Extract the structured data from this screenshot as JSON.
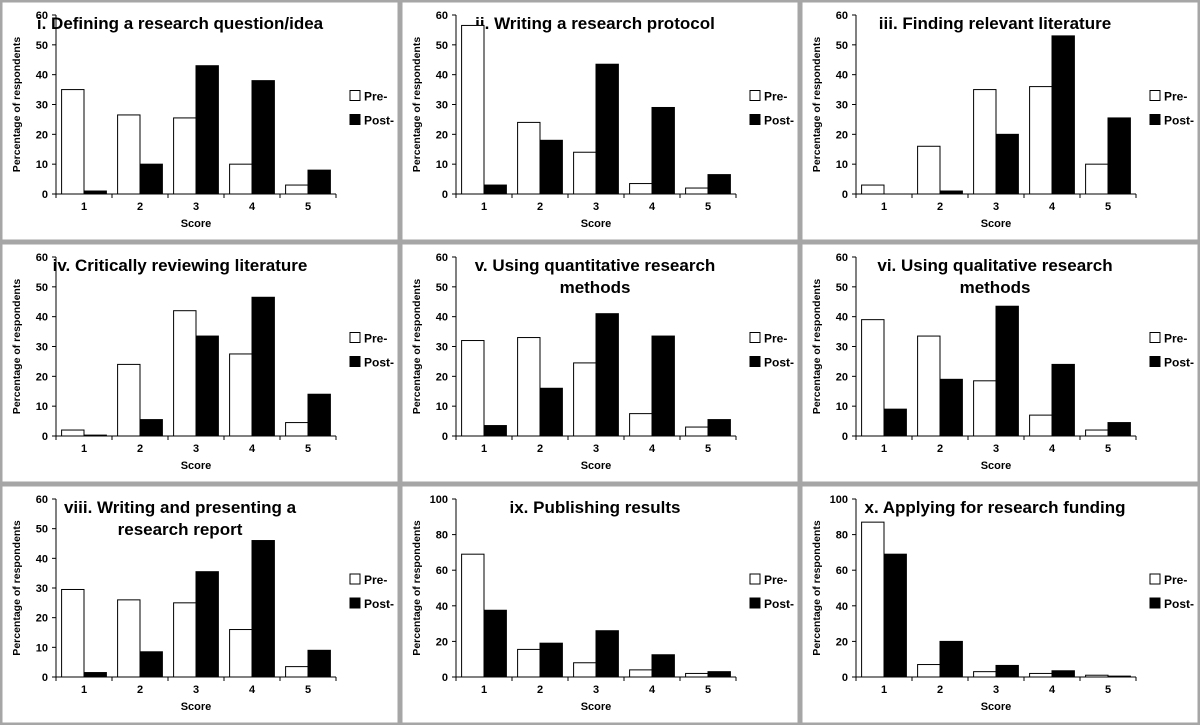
{
  "chart_data": [
    {
      "type": "bar",
      "title": "i. Defining a research question/idea",
      "categories": [
        "1",
        "2",
        "3",
        "4",
        "5"
      ],
      "series": [
        {
          "name": "Pre-",
          "values": [
            35,
            26.5,
            25.5,
            10,
            3
          ]
        },
        {
          "name": "Post-",
          "values": [
            1,
            10,
            43,
            38,
            8
          ]
        }
      ],
      "xlabel": "Score",
      "ylabel": "Percentage of respondents",
      "ylim": [
        0,
        60
      ],
      "yticks": [
        "0",
        "10",
        "20",
        "30",
        "40",
        "50",
        "60"
      ],
      "grid": false,
      "legend": "right"
    },
    {
      "type": "bar",
      "title": "ii. Writing a research protocol",
      "categories": [
        "1",
        "2",
        "3",
        "4",
        "5"
      ],
      "series": [
        {
          "name": "Pre-",
          "values": [
            56.5,
            24,
            14,
            3.5,
            2
          ]
        },
        {
          "name": "Post-",
          "values": [
            3,
            18,
            43.5,
            29,
            6.5
          ]
        }
      ],
      "xlabel": "Score",
      "ylabel": "Percentage of respondents",
      "ylim": [
        0,
        60
      ],
      "yticks": [
        "0",
        "10",
        "20",
        "30",
        "40",
        "50",
        "60"
      ],
      "grid": false,
      "legend": "right"
    },
    {
      "type": "bar",
      "title": "iii. Finding relevant literature",
      "categories": [
        "1",
        "2",
        "3",
        "4",
        "5"
      ],
      "series": [
        {
          "name": "Pre-",
          "values": [
            3,
            16,
            35,
            36,
            10
          ]
        },
        {
          "name": "Post-",
          "values": [
            0,
            1,
            20,
            53,
            25.5
          ]
        }
      ],
      "xlabel": "Score",
      "ylabel": "Percentage of respondents",
      "ylim": [
        0,
        60
      ],
      "yticks": [
        "0",
        "10",
        "20",
        "30",
        "40",
        "50",
        "60"
      ],
      "grid": false,
      "legend": "right"
    },
    {
      "type": "bar",
      "title": "iv. Critically reviewing literature",
      "categories": [
        "1",
        "2",
        "3",
        "4",
        "5"
      ],
      "series": [
        {
          "name": "Pre-",
          "values": [
            2,
            24,
            42,
            27.5,
            4.5
          ]
        },
        {
          "name": "Post-",
          "values": [
            0.3,
            5.5,
            33.5,
            46.5,
            14
          ]
        }
      ],
      "xlabel": "Score",
      "ylabel": "Percentage of respondents",
      "ylim": [
        0,
        60
      ],
      "yticks": [
        "0",
        "10",
        "20",
        "30",
        "40",
        "50",
        "60"
      ],
      "grid": false,
      "legend": "right"
    },
    {
      "type": "bar",
      "title": "v. Using quantitative research methods",
      "categories": [
        "1",
        "2",
        "3",
        "4",
        "5"
      ],
      "series": [
        {
          "name": "Pre-",
          "values": [
            32,
            33,
            24.5,
            7.5,
            3
          ]
        },
        {
          "name": "Post-",
          "values": [
            3.5,
            16,
            41,
            33.5,
            5.5
          ]
        }
      ],
      "xlabel": "Score",
      "ylabel": "Percentage of respondents",
      "ylim": [
        0,
        60
      ],
      "yticks": [
        "0",
        "10",
        "20",
        "30",
        "40",
        "50",
        "60"
      ],
      "grid": false,
      "legend": "right"
    },
    {
      "type": "bar",
      "title": "vi. Using qualitative research methods",
      "categories": [
        "1",
        "2",
        "3",
        "4",
        "5"
      ],
      "series": [
        {
          "name": "Pre-",
          "values": [
            39,
            33.5,
            18.5,
            7,
            2
          ]
        },
        {
          "name": "Post-",
          "values": [
            9,
            19,
            43.5,
            24,
            4.5
          ]
        }
      ],
      "xlabel": "Score",
      "ylabel": "Percentage of respondents",
      "ylim": [
        0,
        60
      ],
      "yticks": [
        "0",
        "10",
        "20",
        "30",
        "40",
        "50",
        "60"
      ],
      "grid": false,
      "legend": "right"
    },
    {
      "type": "bar",
      "title": "viii. Writing and presenting a research report",
      "categories": [
        "1",
        "2",
        "3",
        "4",
        "5"
      ],
      "series": [
        {
          "name": "Pre-",
          "values": [
            29.5,
            26,
            25,
            16,
            3.5
          ]
        },
        {
          "name": "Post-",
          "values": [
            1.5,
            8.5,
            35.5,
            46,
            9
          ]
        }
      ],
      "xlabel": "Score",
      "ylabel": "Percentage of respondents",
      "ylim": [
        0,
        60
      ],
      "yticks": [
        "0",
        "10",
        "20",
        "30",
        "40",
        "50",
        "60"
      ],
      "grid": false,
      "legend": "right"
    },
    {
      "type": "bar",
      "title": "ix. Publishing results",
      "categories": [
        "1",
        "2",
        "3",
        "4",
        "5"
      ],
      "series": [
        {
          "name": "Pre-",
          "values": [
            69,
            15.5,
            8,
            4,
            2
          ]
        },
        {
          "name": "Post-",
          "values": [
            37.5,
            19,
            26,
            12.5,
            3
          ]
        }
      ],
      "xlabel": "Score",
      "ylabel": "Percentage of respondents",
      "ylim": [
        0,
        100
      ],
      "yticks": [
        "0",
        "20",
        "40",
        "60",
        "80",
        "100"
      ],
      "grid": false,
      "legend": "right"
    },
    {
      "type": "bar",
      "title": "x. Applying for research funding",
      "categories": [
        "1",
        "2",
        "3",
        "4",
        "5"
      ],
      "series": [
        {
          "name": "Pre-",
          "values": [
            87,
            7,
            3,
            2,
            1
          ]
        },
        {
          "name": "Post-",
          "values": [
            69,
            20,
            6.5,
            3.5,
            0.5
          ]
        }
      ],
      "xlabel": "Score",
      "ylabel": "Percentage of respondents",
      "ylim": [
        0,
        100
      ],
      "yticks": [
        "0",
        "20",
        "40",
        "60",
        "80",
        "100"
      ],
      "grid": false,
      "legend": "right"
    }
  ],
  "colors": {
    "pre_fill": "#ffffff",
    "post_fill": "#000000",
    "bar_stroke": "#000000",
    "panel_border": "#a6a6a6"
  }
}
